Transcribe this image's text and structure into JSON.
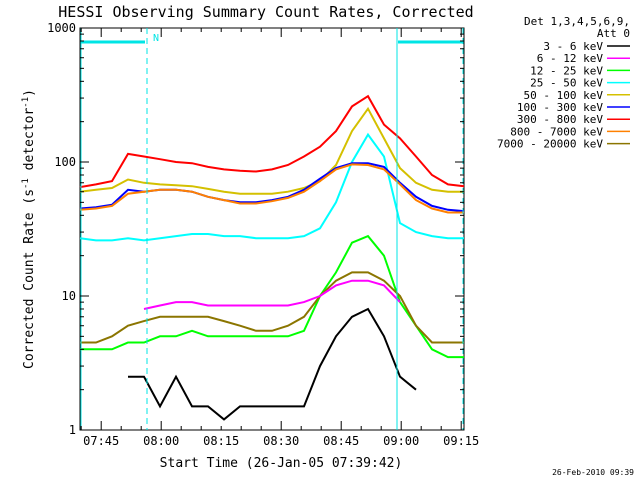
{
  "chart_data": {
    "type": "line",
    "title": "HESSI Observing Summary Count Rates, Corrected",
    "xlabel": "Start Time (26-Jan-05 07:39:42)",
    "ylabel_main": "Corrected Count Rate (s",
    "ylabel_sup1": "-1",
    "ylabel_mid": " detector",
    "ylabel_sup2": "-1",
    "ylabel_end": ")",
    "yscale": "log",
    "ylim": [
      1,
      1000
    ],
    "xlim_minutes": [
      0,
      96
    ],
    "x_ticks": [
      "07:45",
      "08:00",
      "08:15",
      "08:30",
      "08:45",
      "09:00",
      "09:15"
    ],
    "x_ticks_minutes": [
      5.3,
      20.3,
      35.3,
      50.3,
      65.3,
      80.3,
      95.3
    ],
    "y_ticks": [
      "1",
      "10",
      "100",
      "1000"
    ],
    "y_ticks_values": [
      1,
      10,
      100,
      1000
    ],
    "legend_header": [
      "Det 1,3,4,5,6,9,",
      "Att 0"
    ],
    "legend_position": "right",
    "night_flag_label": "N",
    "footer_timestamp": "26-Feb-2010 09:39",
    "x": [
      0,
      4,
      8,
      12,
      16,
      20,
      24,
      28,
      32,
      36,
      40,
      44,
      48,
      52,
      56,
      60,
      64,
      68,
      72,
      76,
      80,
      84,
      88,
      92,
      96
    ],
    "series": [
      {
        "name": "3 - 6 keV",
        "color": "#000000",
        "values": [
          null,
          null,
          null,
          2.5,
          2.5,
          1.5,
          2.5,
          1.5,
          1.5,
          1.2,
          1.5,
          1.5,
          1.5,
          1.5,
          1.5,
          3,
          5,
          7,
          8,
          5,
          2.5,
          2,
          null,
          null,
          null
        ]
      },
      {
        "name": "6 - 12 keV",
        "color": "#ff00ff",
        "values": [
          null,
          null,
          null,
          null,
          8,
          8.5,
          9,
          9,
          8.5,
          8.5,
          8.5,
          8.5,
          8.5,
          8.5,
          9,
          10,
          12,
          13,
          13,
          12,
          9,
          null,
          null,
          null,
          null
        ]
      },
      {
        "name": "12 - 25 keV",
        "color": "#00ff00",
        "values": [
          4,
          4,
          4,
          4.5,
          4.5,
          5,
          5,
          5.5,
          5,
          5,
          5,
          5,
          5,
          5,
          5.5,
          10,
          15,
          25,
          28,
          20,
          9,
          6,
          4,
          3.5,
          3.5
        ]
      },
      {
        "name": "25 - 50 keV",
        "color": "#00ffff",
        "values": [
          27,
          26,
          26,
          27,
          26,
          27,
          28,
          29,
          29,
          28,
          28,
          27,
          27,
          27,
          28,
          32,
          50,
          100,
          160,
          110,
          35,
          30,
          28,
          27,
          27
        ]
      },
      {
        "name": "50 - 100 keV",
        "color": "#d4c000",
        "values": [
          60,
          62,
          64,
          74,
          70,
          68,
          67,
          66,
          63,
          60,
          58,
          58,
          58,
          60,
          64,
          72,
          95,
          170,
          250,
          150,
          90,
          70,
          62,
          60,
          60
        ]
      },
      {
        "name": "100 - 300 keV",
        "color": "#0000ff",
        "values": [
          45,
          46,
          48,
          62,
          60,
          62,
          62,
          60,
          55,
          52,
          50,
          50,
          52,
          55,
          62,
          75,
          90,
          98,
          98,
          92,
          70,
          55,
          47,
          44,
          43
        ]
      },
      {
        "name": "300 - 800 keV",
        "color": "#ff0000",
        "values": [
          65,
          68,
          72,
          115,
          110,
          105,
          100,
          98,
          92,
          88,
          86,
          85,
          88,
          95,
          110,
          130,
          170,
          260,
          310,
          190,
          150,
          110,
          80,
          68,
          66
        ]
      },
      {
        "name": "800 - 7000 keV",
        "color": "#ff8000",
        "values": [
          44,
          45,
          47,
          58,
          60,
          62,
          62,
          60,
          55,
          52,
          49,
          49,
          51,
          54,
          60,
          72,
          88,
          96,
          95,
          88,
          68,
          52,
          45,
          42,
          42
        ]
      },
      {
        "name": "7000 - 20000 keV",
        "color": "#8b7500",
        "values": [
          4.5,
          4.5,
          5,
          6,
          6.5,
          7,
          7,
          7,
          7,
          6.5,
          6,
          5.5,
          5.5,
          6,
          7,
          10,
          13,
          15,
          15,
          13,
          10,
          6,
          4.5,
          4.5,
          4.5
        ]
      }
    ]
  }
}
